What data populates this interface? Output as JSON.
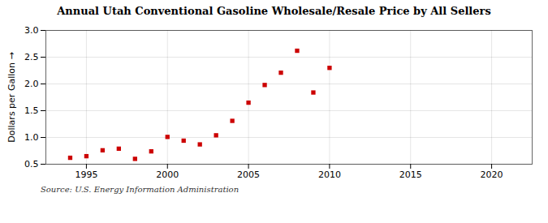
{
  "chart_data": {
    "type": "scatter",
    "title": "Annual Utah Conventional Gasoline Wholesale/Resale Price by All Sellers",
    "ylabel": "Dollars per Gallon",
    "annotation": "Source: U.S. Energy Information Administration",
    "x": [
      1994,
      1995,
      1996,
      1997,
      1998,
      1999,
      2000,
      2001,
      2002,
      2003,
      2004,
      2005,
      2006,
      2007,
      2008,
      2009,
      2010
    ],
    "values": [
      0.62,
      0.65,
      0.76,
      0.79,
      0.6,
      0.74,
      1.01,
      0.94,
      0.87,
      1.04,
      1.31,
      1.65,
      1.98,
      2.21,
      2.62,
      1.84,
      2.3
    ],
    "color": "#cc0000",
    "marker": "square",
    "xlim": [
      1992.5,
      2022.5
    ],
    "ylim": [
      0.5,
      3.0
    ],
    "xticks": [
      1995,
      2000,
      2005,
      2010,
      2015,
      2020
    ],
    "yticks": [
      0.5,
      {
        "value": 1.0,
        "label": "1.0"
      },
      1.5,
      {
        "value": 2.0,
        "label": "2.0"
      },
      2.5,
      {
        "value": 3.0,
        "label": "3.0"
      }
    ],
    "grid": true
  }
}
